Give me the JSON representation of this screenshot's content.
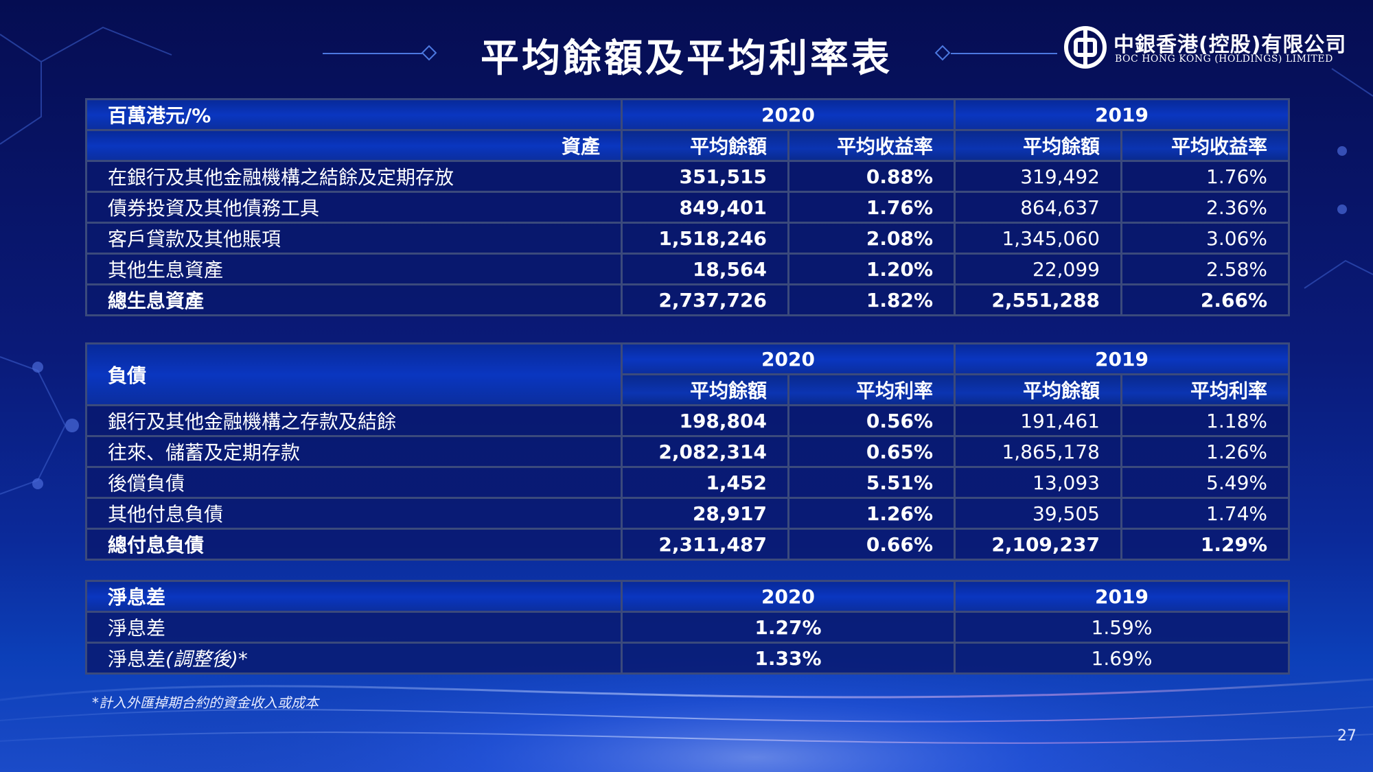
{
  "page": {
    "title": "平均餘額及平均利率表",
    "page_number": "27",
    "footnote": "*計入外匯掉期合約的資金收入或成本"
  },
  "logo": {
    "cn": "中銀香港(控股)有限公司",
    "en": "BOC HONG KONG (HOLDINGS) LIMITED",
    "icon": "boc-logo-icon"
  },
  "assets": {
    "unit_label": "百萬港元/%",
    "section_label": "資產",
    "year_2020": "2020",
    "year_2019": "2019",
    "col_balance": "平均餘額",
    "col_rate": "平均收益率",
    "rows": [
      {
        "label": "在銀行及其他金融機構之結餘及定期存放",
        "b2020": "351,515",
        "r2020": "0.88%",
        "b2019": "319,492",
        "r2019": "1.76%"
      },
      {
        "label": "債券投資及其他債務工具",
        "b2020": "849,401",
        "r2020": "1.76%",
        "b2019": "864,637",
        "r2019": "2.36%"
      },
      {
        "label": "客戶貸款及其他賬項",
        "b2020": "1,518,246",
        "r2020": "2.08%",
        "b2019": "1,345,060",
        "r2019": "3.06%"
      },
      {
        "label": "其他生息資產",
        "b2020": "18,564",
        "r2020": "1.20%",
        "b2019": "22,099",
        "r2019": "2.58%"
      },
      {
        "label": "總生息資產",
        "b2020": "2,737,726",
        "r2020": "1.82%",
        "b2019": "2,551,288",
        "r2019": "2.66%"
      }
    ]
  },
  "liabilities": {
    "section_label": "負債",
    "year_2020": "2020",
    "year_2019": "2019",
    "col_balance": "平均餘額",
    "col_rate": "平均利率",
    "rows": [
      {
        "label": "銀行及其他金融機構之存款及結餘",
        "b2020": "198,804",
        "r2020": "0.56%",
        "b2019": "191,461",
        "r2019": "1.18%"
      },
      {
        "label": "往來、儲蓄及定期存款",
        "b2020": "2,082,314",
        "r2020": "0.65%",
        "b2019": "1,865,178",
        "r2019": "1.26%"
      },
      {
        "label": "後償負債",
        "b2020": "1,452",
        "r2020": "5.51%",
        "b2019": "13,093",
        "r2019": "5.49%"
      },
      {
        "label": "其他付息負債",
        "b2020": "28,917",
        "r2020": "1.26%",
        "b2019": "39,505",
        "r2019": "1.74%"
      },
      {
        "label": "總付息負債",
        "b2020": "2,311,487",
        "r2020": "0.66%",
        "b2019": "2,109,237",
        "r2019": "1.29%"
      }
    ]
  },
  "nim": {
    "section_label": "淨息差",
    "year_2020": "2020",
    "year_2019": "2019",
    "rows": [
      {
        "label": "淨息差",
        "label_suffix": "",
        "v2020": "1.27%",
        "v2019": "1.59%"
      },
      {
        "label": "淨息差",
        "label_suffix": "(調整後)*",
        "v2020": "1.33%",
        "v2019": "1.69%"
      }
    ]
  }
}
